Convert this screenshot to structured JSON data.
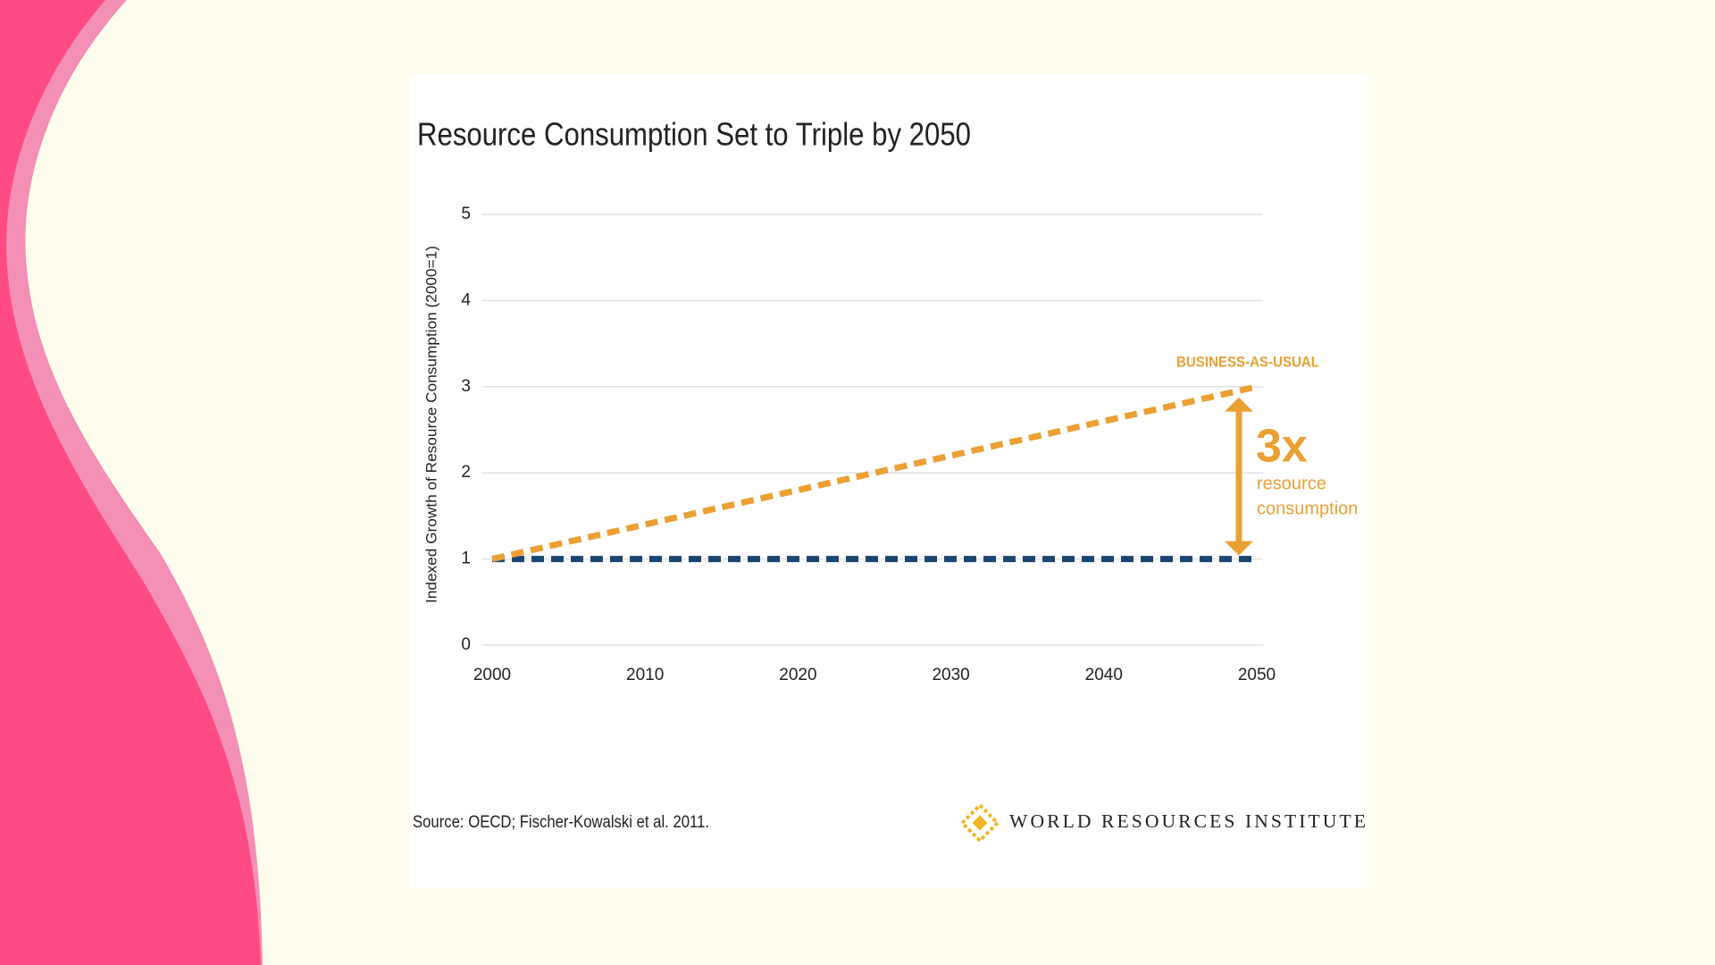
{
  "chart_data": {
    "type": "line",
    "title": "Resource Consumption Set to Triple by 2050",
    "y_label": "Indexed Growth of Resource Consumption (2000=1)",
    "x": [
      2000,
      2050
    ],
    "series": [
      {
        "name": "BUSINESS-AS-USUAL",
        "color": "#eba034",
        "values": [
          1,
          3
        ]
      },
      {
        "color": "#1b4670",
        "values": [
          1,
          1
        ]
      }
    ],
    "xlim": [
      2000,
      2050
    ],
    "xticks": [
      2000,
      2010,
      2020,
      2030,
      2040,
      2050
    ],
    "ylim": [
      0,
      5
    ],
    "yticks": [
      0,
      1,
      2,
      3,
      4,
      5
    ],
    "grid": true,
    "annotations": [
      "3x",
      "resource",
      "consumption"
    ],
    "source": "Source: OECD; Fischer-Kowalski et al. 2011.",
    "publisher": "WORLD RESOURCES INSTITUTE"
  }
}
